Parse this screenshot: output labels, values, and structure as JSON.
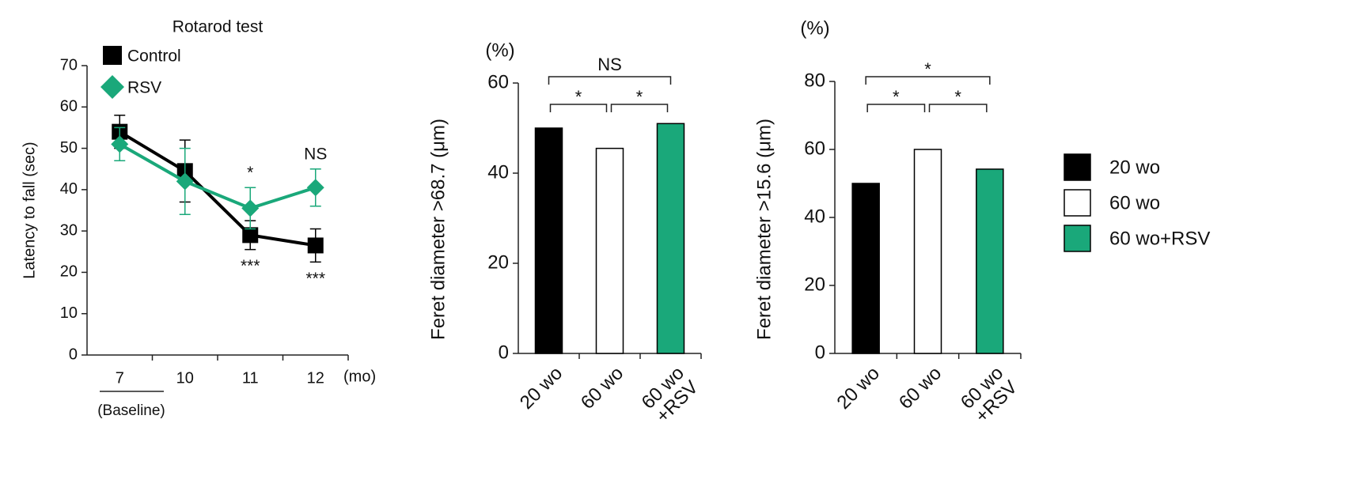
{
  "chart_data": [
    {
      "type": "line",
      "title": "Rotarod test",
      "y_label": "Latency to fall (sec)",
      "categories": [
        "7",
        "10",
        "11",
        "12"
      ],
      "x_unit": "(mo)",
      "x_note": "(Baseline)",
      "series": [
        {
          "name": "Control",
          "color": "#000000",
          "marker": "square",
          "values": [
            54,
            44.5,
            29,
            26.5
          ],
          "errors": [
            4,
            7.5,
            3.5,
            4
          ]
        },
        {
          "name": "RSV",
          "color": "#1aa87a",
          "marker": "diamond",
          "values": [
            51,
            42,
            35.5,
            40.5
          ],
          "errors": [
            4,
            8,
            5,
            4.5
          ]
        }
      ],
      "annotations": [
        "*",
        "NS",
        "***",
        "***"
      ],
      "ylim": [
        0,
        70
      ],
      "yticks": [
        0,
        10,
        20,
        30,
        40,
        50,
        60,
        70
      ]
    },
    {
      "type": "bar",
      "y_label": "Feret diameter >68.7 (μm)",
      "y_unit": "(%)",
      "categories": [
        "20 wo",
        "60 wo",
        "60 wo\n+RSV"
      ],
      "values": [
        50,
        45.5,
        51
      ],
      "colors": [
        "#000000",
        "#ffffff",
        "#1aa87a"
      ],
      "significance": [
        "NS",
        "*",
        "*"
      ],
      "ylim": [
        0,
        60
      ],
      "yticks": [
        0,
        20,
        40,
        60
      ]
    },
    {
      "type": "bar",
      "y_label": "Feret diameter >15.6 (μm)",
      "y_unit": "(%)",
      "categories": [
        "20 wo",
        "60 wo",
        "60 wo\n+RSV"
      ],
      "values": [
        50,
        60,
        54.2
      ],
      "colors": [
        "#000000",
        "#ffffff",
        "#1aa87a"
      ],
      "significance": [
        "*",
        "*",
        "*"
      ],
      "ylim": [
        0,
        80
      ],
      "yticks": [
        0,
        20,
        40,
        60,
        80
      ],
      "legend": [
        {
          "name": "20 wo",
          "color": "#000000"
        },
        {
          "name": "60 wo",
          "color": "#ffffff"
        },
        {
          "name": "60 wo+RSV",
          "color": "#1aa87a"
        }
      ]
    }
  ]
}
